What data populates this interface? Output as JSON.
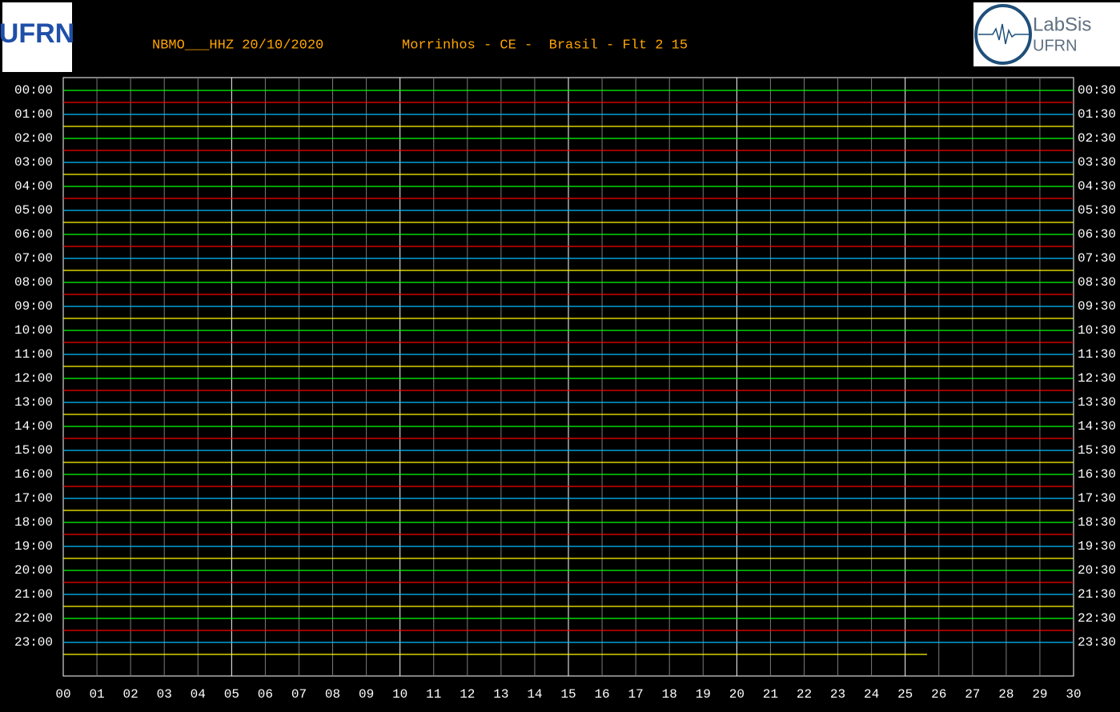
{
  "header": {
    "station": "NBMO___HHZ 20/10/2020",
    "location": "Morrinhos - CE -  Brasil - Flt 2 15",
    "logo_left": "UFRN",
    "logo_right": [
      "LabSis",
      "UFRN"
    ]
  },
  "helicorder": {
    "left_labels": [
      "00:00",
      "01:00",
      "02:00",
      "03:00",
      "04:00",
      "05:00",
      "06:00",
      "07:00",
      "08:00",
      "09:00",
      "10:00",
      "11:00",
      "12:00",
      "13:00",
      "14:00",
      "15:00",
      "16:00",
      "17:00",
      "18:00",
      "19:00",
      "20:00",
      "21:00",
      "22:00",
      "23:00"
    ],
    "right_labels": [
      "00:30",
      "01:30",
      "02:30",
      "03:30",
      "04:30",
      "05:30",
      "06:30",
      "07:30",
      "08:30",
      "09:30",
      "10:30",
      "11:30",
      "12:30",
      "13:30",
      "14:30",
      "15:30",
      "16:30",
      "17:30",
      "18:30",
      "19:30",
      "20:30",
      "21:30",
      "22:30",
      "23:30"
    ],
    "x_ticks": [
      "00",
      "01",
      "02",
      "03",
      "04",
      "05",
      "06",
      "07",
      "08",
      "09",
      "10",
      "11",
      "12",
      "13",
      "14",
      "15",
      "16",
      "17",
      "18",
      "19",
      "20",
      "21",
      "22",
      "23",
      "24",
      "25",
      "26",
      "27",
      "28",
      "29",
      "30"
    ],
    "trace_colors": [
      "#00ff00",
      "#ff0000",
      "#00bfff",
      "#ffff00"
    ]
  }
}
